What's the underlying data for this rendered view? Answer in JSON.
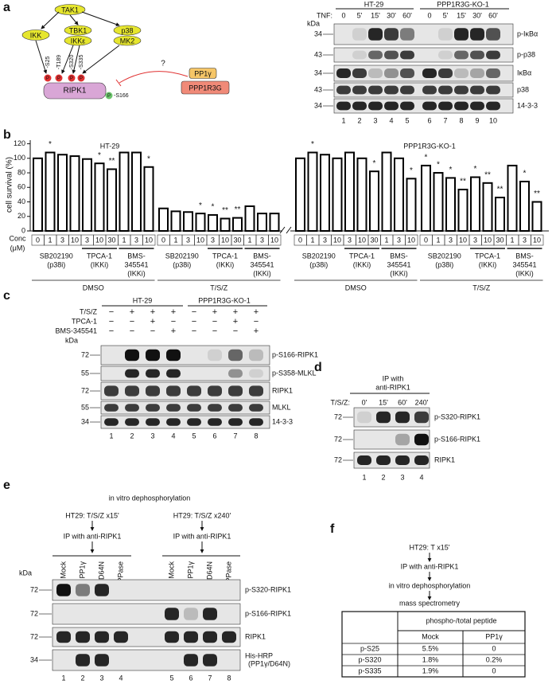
{
  "panel_labels": [
    "a",
    "b",
    "c",
    "d",
    "e",
    "f"
  ],
  "panel_a": {
    "pathway": {
      "nodes": [
        "TAK1",
        "IKK",
        "TBK1",
        "IKKε",
        "p38",
        "MK2",
        "RIPK1",
        "PP1γ",
        "PPP1R3G",
        "?"
      ],
      "sites": [
        "-S25",
        "-T189",
        "-S320",
        "-S335",
        "-S166"
      ],
      "phospho": "P"
    },
    "blot": {
      "headers": [
        "HT-29",
        "PPP1R3G-KO-1"
      ],
      "treatment": "TNF:",
      "times": [
        "0",
        "5'",
        "15'",
        "30'",
        "60'",
        "0",
        "5'",
        "15'",
        "30'",
        "60'"
      ],
      "kda_label": "kDa",
      "markers": [
        "34",
        "43",
        "34",
        "43",
        "34"
      ],
      "bands": [
        "p-IκBα",
        "p-p38",
        "IκBα",
        "p38",
        "14-3-3"
      ],
      "lanes": [
        "1",
        "2",
        "3",
        "4",
        "5",
        "6",
        "7",
        "8",
        "9",
        "10"
      ]
    }
  },
  "chart_data": {
    "type": "bar",
    "ylabel": "cell survival (%)",
    "group_titles": [
      "HT-29",
      "PPP1R3G-KO-1"
    ],
    "categories": [
      "0",
      "1",
      "3",
      "10",
      "3",
      "10",
      "30",
      "1",
      "3",
      "10",
      "0",
      "1",
      "3",
      "10",
      "3",
      "10",
      "30",
      "1",
      "3",
      "10",
      "0",
      "1",
      "3",
      "10",
      "3",
      "10",
      "30",
      "1",
      "3",
      "10",
      "0",
      "1",
      "3",
      "10",
      "3",
      "10",
      "30",
      "1",
      "3",
      "10"
    ],
    "values": [
      100,
      108,
      105,
      103,
      99,
      93,
      85,
      108,
      108,
      88,
      31,
      27,
      26,
      24,
      22,
      17,
      18,
      34,
      24,
      24,
      100,
      108,
      105,
      100,
      108,
      100,
      82,
      108,
      100,
      72,
      90,
      80,
      73,
      57,
      74,
      66,
      46,
      90,
      68,
      40
    ],
    "significance": [
      null,
      "*",
      null,
      null,
      null,
      "*",
      "**",
      null,
      null,
      "*",
      null,
      null,
      null,
      "*",
      "*",
      "**",
      "**",
      null,
      null,
      null,
      null,
      "*",
      null,
      null,
      null,
      null,
      "*",
      null,
      null,
      "*",
      "*",
      "*",
      "*",
      "**",
      "*",
      "**",
      "**",
      null,
      "*",
      "**"
    ],
    "color": "#000000",
    "ylim": [
      0,
      125
    ],
    "yticks": [
      0,
      20,
      40,
      60,
      80,
      100,
      120
    ],
    "conc_label": [
      "Conc",
      "(μM)"
    ],
    "drugs": [
      [
        "SB202190",
        "(p38i)"
      ],
      [
        "TPCA-1",
        "(IKKi)"
      ],
      [
        "BMS-",
        "345541",
        "(IKKi)"
      ]
    ],
    "vehicles": [
      "DMSO",
      "T/S/Z",
      "DMSO",
      "T/S/Z"
    ]
  },
  "panel_c": {
    "headers": [
      "HT-29",
      "PPP1R3G-KO-1"
    ],
    "treatments": [
      "T/S/Z",
      "TPCA-1",
      "BMS-345541"
    ],
    "signs": [
      [
        "−",
        "+",
        "+",
        "+",
        "−",
        "+",
        "+",
        "+"
      ],
      [
        "−",
        "−",
        "+",
        "−",
        "−",
        "−",
        "+",
        "−"
      ],
      [
        "−",
        "−",
        "−",
        "+",
        "−",
        "−",
        "−",
        "+"
      ]
    ],
    "kda_label": "kDa",
    "markers": [
      "72",
      "55",
      "72",
      "55",
      "34"
    ],
    "bands": [
      "p-S166-RIPK1",
      "p-S358-MLKL",
      "RIPK1",
      "MLKL",
      "14-3-3"
    ],
    "lanes": [
      "1",
      "2",
      "3",
      "4",
      "5",
      "6",
      "7",
      "8"
    ]
  },
  "panel_d": {
    "title": [
      "IP with",
      "anti-RIPK1"
    ],
    "treatment": "T/S/Z:",
    "times": [
      "0'",
      "15'",
      "60'",
      "240'"
    ],
    "markers": [
      "72",
      "72",
      "72"
    ],
    "bands": [
      "p-S320-RIPK1",
      "p-S166-RIPK1",
      "RIPK1"
    ],
    "lanes": [
      "1",
      "2",
      "3",
      "4"
    ]
  },
  "panel_e": {
    "title": "in vitro dephosphorylation",
    "conditions": [
      "HT29: T/S/Z x15'",
      "HT29: T/S/Z x240'"
    ],
    "ip": "IP with anti-RIPK1",
    "treatments": [
      "Mock",
      "PP1γ",
      "D64N",
      "λPPase"
    ],
    "kda_label": "kDa",
    "markers": [
      "72",
      "72",
      "72",
      "34"
    ],
    "bands": [
      "p-S320-RIPK1",
      "p-S166-RIPK1",
      "RIPK1",
      "His-HRP",
      "(PP1γ/D64N)"
    ],
    "lanes": [
      "1",
      "2",
      "3",
      "4",
      "5",
      "6",
      "7",
      "8"
    ]
  },
  "panel_f": {
    "steps": [
      "HT29: T x15'",
      "IP with anti-RIPK1",
      "in vitro dephosphorylation",
      "mass spectrometry"
    ],
    "table": {
      "header": "phospho-/total peptide",
      "columns": [
        "Mock",
        "PP1γ"
      ],
      "rows": [
        [
          "p-S25",
          "5.5%",
          "0"
        ],
        [
          "p-S320",
          "1.8%",
          "0.2%"
        ],
        [
          "p-S335",
          "1.9%",
          "0"
        ]
      ]
    }
  }
}
